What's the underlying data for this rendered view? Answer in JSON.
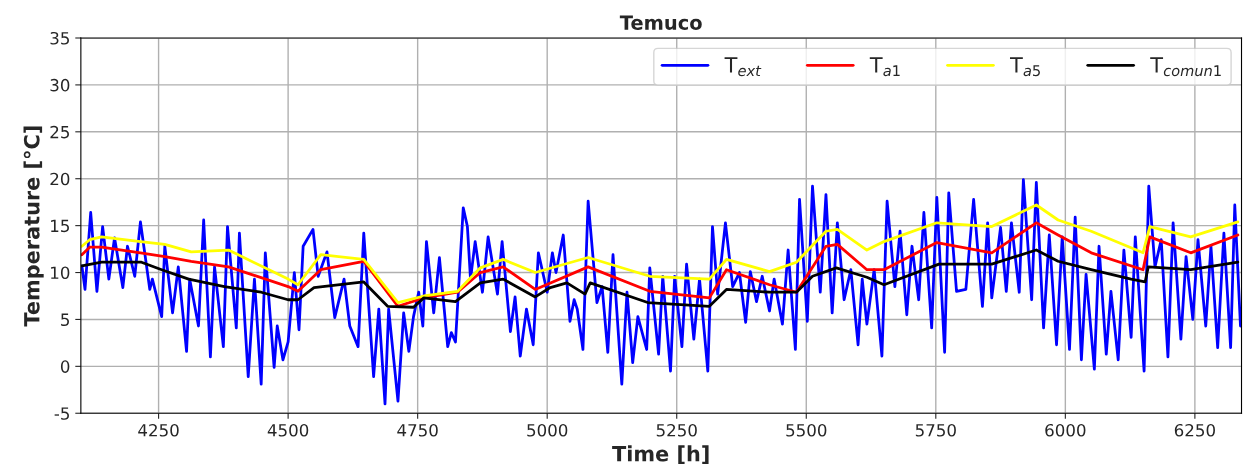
{
  "chart_data": {
    "type": "line",
    "title": "Temuco",
    "xlabel": "Time [h]",
    "ylabel": "Temperature [°C]",
    "xlim": [
      4100,
      6340
    ],
    "ylim": [
      -5,
      35
    ],
    "xticks": [
      4250,
      4500,
      4750,
      5000,
      5250,
      5500,
      5750,
      6000,
      6250
    ],
    "yticks": [
      -5,
      0,
      5,
      10,
      15,
      20,
      25,
      30,
      35
    ],
    "grid": true,
    "legend": "top right",
    "marker": "none",
    "line_style": "solid",
    "series": [
      {
        "name": "T$_{ext}$",
        "color": "#0000ff",
        "x": [
          4102,
          4108,
          4119,
          4131,
          4142,
          4154,
          4165,
          4181,
          4190,
          4204,
          4215,
          4233,
          4238,
          4256,
          4262,
          4277,
          4288,
          4304,
          4310,
          4327,
          4337,
          4350,
          4358,
          4375,
          4383,
          4400,
          4406,
          4423,
          4435,
          4448,
          4456,
          4473,
          4479,
          4490,
          4500,
          4512,
          4521,
          4529,
          4548,
          4558,
          4575,
          4590,
          4608,
          4619,
          4635,
          4646,
          4665,
          4675,
          4687,
          4694,
          4712,
          4723,
          4733,
          4742,
          4752,
          4760,
          4767,
          4781,
          4792,
          4808,
          4815,
          4823,
          4838,
          4846,
          4852,
          4861,
          4875,
          4886,
          4904,
          4913,
          4929,
          4938,
          4948,
          4960,
          4973,
          4983,
          5000,
          5010,
          5017,
          5031,
          5044,
          5052,
          5058,
          5069,
          5079,
          5096,
          5106,
          5117,
          5127,
          5144,
          5154,
          5165,
          5175,
          5192,
          5198,
          5215,
          5223,
          5238,
          5246,
          5260,
          5269,
          5283,
          5294,
          5310,
          5319,
          5329,
          5344,
          5358,
          5371,
          5383,
          5392,
          5404,
          5415,
          5429,
          5438,
          5454,
          5465,
          5479,
          5487,
          5502,
          5512,
          5527,
          5538,
          5550,
          5560,
          5573,
          5586,
          5600,
          5608,
          5617,
          5631,
          5646,
          5656,
          5671,
          5681,
          5694,
          5704,
          5717,
          5727,
          5742,
          5752,
          5767,
          5775,
          5790,
          5808,
          5823,
          5840,
          5850,
          5858,
          5875,
          5886,
          5896,
          5911,
          5919,
          5935,
          5944,
          5958,
          5969,
          5983,
          5994,
          6008,
          6019,
          6031,
          6040,
          6056,
          6065,
          6079,
          6088,
          6102,
          6113,
          6127,
          6135,
          6152,
          6161,
          6173,
          6185,
          6198,
          6208,
          6223,
          6233,
          6246,
          6256,
          6271,
          6281,
          6294,
          6306,
          6319,
          6327,
          6338
        ],
        "values": [
          10.7,
          8.2,
          16.4,
          8.0,
          14.9,
          9.3,
          13.7,
          8.4,
          12.8,
          9.6,
          15.4,
          8.2,
          9.3,
          5.3,
          12.8,
          5.7,
          10.6,
          1.6,
          9.3,
          4.3,
          15.6,
          1.0,
          10.6,
          2.1,
          14.9,
          4.1,
          14.2,
          -1.1,
          9.3,
          -1.9,
          12.1,
          -0.1,
          4.3,
          0.7,
          2.6,
          10.0,
          3.9,
          12.8,
          14.6,
          9.6,
          12.2,
          5.2,
          9.3,
          4.3,
          2.1,
          14.2,
          -1.1,
          6.1,
          -4.0,
          6.1,
          -3.7,
          5.7,
          1.6,
          5.3,
          7.9,
          4.3,
          13.3,
          5.7,
          11.6,
          2.1,
          3.6,
          2.6,
          16.9,
          14.9,
          9.3,
          13.3,
          7.9,
          13.8,
          7.7,
          13.3,
          3.7,
          7.4,
          1.1,
          6.1,
          2.3,
          12.1,
          7.9,
          12.1,
          10.0,
          14.0,
          4.8,
          7.1,
          6.1,
          1.8,
          17.6,
          6.8,
          8.5,
          1.5,
          11.9,
          -1.9,
          7.9,
          0.4,
          5.3,
          1.8,
          10.5,
          1.3,
          9.6,
          -0.5,
          9.6,
          2.1,
          10.9,
          2.9,
          9.3,
          -0.5,
          14.9,
          7.7,
          15.3,
          8.5,
          10.0,
          4.7,
          10.1,
          6.9,
          9.6,
          5.9,
          9.3,
          4.5,
          12.4,
          1.8,
          17.8,
          4.8,
          19.2,
          7.9,
          18.3,
          5.7,
          15.3,
          7.1,
          10.3,
          2.3,
          9.3,
          4.5,
          10.3,
          1.1,
          17.6,
          8.5,
          14.4,
          5.5,
          12.8,
          7.1,
          16.4,
          4.1,
          18.0,
          1.5,
          18.5,
          8.0,
          8.2,
          17.8,
          6.4,
          15.3,
          7.3,
          14.8,
          8.0,
          15.3,
          7.9,
          19.9,
          7.1,
          19.6,
          4.1,
          14.0,
          2.3,
          13.8,
          1.8,
          15.9,
          0.7,
          9.8,
          -0.3,
          12.8,
          1.3,
          8.0,
          0.7,
          12.4,
          3.1,
          13.8,
          -0.5,
          19.2,
          10.6,
          13.5,
          1.0,
          15.3,
          2.9,
          11.7,
          5.0,
          13.5,
          4.3,
          12.8,
          2.0,
          14.2,
          2.0,
          17.2,
          4.3
        ]
      },
      {
        "name": "T$_{a1}$",
        "color": "#ff0000",
        "x": [
          4102,
          4117,
          4140,
          4215,
          4262,
          4313,
          4385,
          4500,
          4519,
          4563,
          4646,
          4712,
          4762,
          4827,
          4871,
          4915,
          4977,
          5079,
          5198,
          5313,
          5346,
          5429,
          5481,
          5538,
          5560,
          5617,
          5650,
          5752,
          5858,
          5944,
          5986,
          6050,
          6150,
          6163,
          6242,
          6333
        ],
        "values": [
          11.9,
          12.7,
          12.7,
          12.1,
          11.7,
          11.2,
          10.6,
          8.5,
          8.0,
          10.3,
          11.2,
          6.4,
          7.3,
          7.9,
          10.0,
          10.6,
          8.2,
          10.6,
          8.0,
          7.3,
          10.3,
          8.7,
          7.9,
          12.8,
          13.0,
          10.3,
          10.3,
          13.2,
          12.1,
          15.3,
          14.0,
          12.1,
          10.3,
          13.8,
          12.1,
          14.0
        ]
      },
      {
        "name": "T$_{a5}$",
        "color": "#ffff00",
        "x": [
          4102,
          4117,
          4140,
          4215,
          4262,
          4313,
          4385,
          4500,
          4519,
          4563,
          4646,
          4712,
          4762,
          4827,
          4871,
          4915,
          4977,
          5079,
          5198,
          5313,
          5346,
          5429,
          5481,
          5538,
          5560,
          5617,
          5650,
          5752,
          5858,
          5944,
          5986,
          6050,
          6150,
          6163,
          6242,
          6333
        ],
        "values": [
          12.8,
          13.5,
          13.8,
          13.3,
          13.0,
          12.2,
          12.4,
          9.3,
          8.7,
          11.9,
          11.4,
          6.8,
          7.5,
          8.0,
          10.5,
          11.4,
          10.0,
          11.6,
          9.6,
          9.3,
          11.4,
          10.1,
          11.1,
          14.4,
          14.6,
          12.4,
          13.3,
          15.3,
          14.9,
          17.2,
          15.6,
          14.4,
          12.1,
          14.9,
          13.8,
          15.4
        ]
      },
      {
        "name": "T$_{comun1}$",
        "color": "#000000",
        "x": [
          4102,
          4140,
          4217,
          4256,
          4308,
          4377,
          4448,
          4500,
          4519,
          4550,
          4646,
          4692,
          4742,
          4762,
          4823,
          4871,
          4915,
          4977,
          5006,
          5038,
          5073,
          5083,
          5194,
          5313,
          5346,
          5429,
          5481,
          5512,
          5558,
          5617,
          5650,
          5756,
          5858,
          5944,
          5986,
          6050,
          6127,
          6154,
          6160,
          6242,
          6333
        ],
        "values": [
          10.7,
          11.1,
          11.1,
          10.3,
          9.3,
          8.5,
          7.9,
          7.1,
          7.1,
          8.4,
          9.0,
          6.4,
          6.3,
          7.3,
          6.9,
          8.9,
          9.3,
          7.4,
          8.4,
          8.9,
          7.7,
          8.9,
          6.8,
          6.4,
          8.2,
          7.9,
          7.9,
          9.6,
          10.5,
          9.5,
          8.7,
          10.9,
          10.9,
          12.4,
          11.2,
          10.3,
          9.3,
          9.0,
          10.6,
          10.3,
          11.1
        ]
      }
    ]
  }
}
